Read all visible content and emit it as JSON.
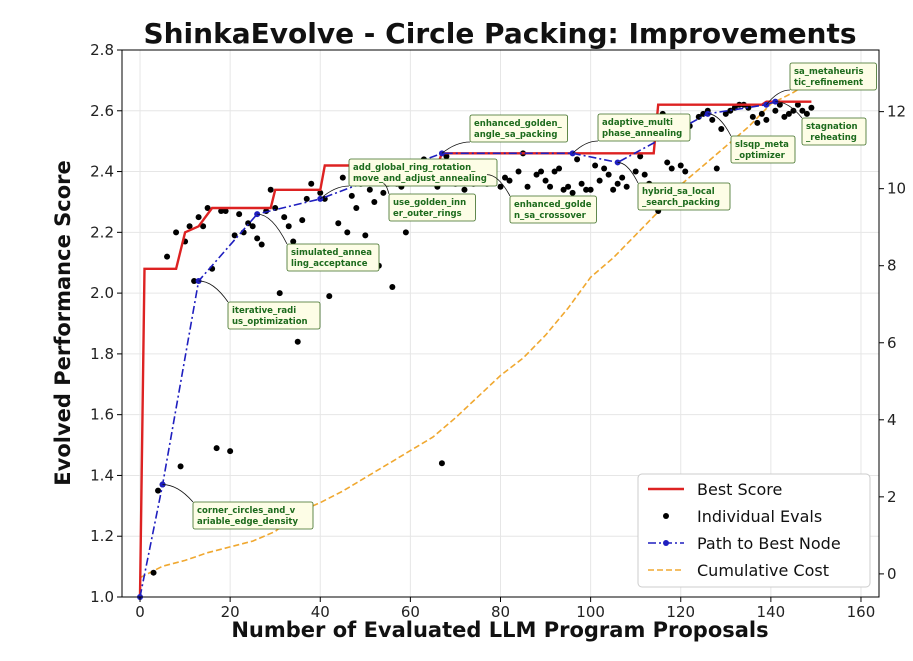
{
  "chart_data": {
    "type": "line",
    "title": "ShinkaEvolve - Circle Packing: Improvements",
    "xlabel": "Number of Evaluated LLM Program Proposals",
    "ylabel": "Evolved Performance Score",
    "xlim": [
      -4,
      164
    ],
    "ylim": [
      1.0,
      2.8
    ],
    "y2lim": [
      -0.6,
      13.6
    ],
    "xticks": [
      0,
      20,
      40,
      60,
      80,
      100,
      120,
      140,
      160
    ],
    "yticks": [
      1.0,
      1.2,
      1.4,
      1.6,
      1.8,
      2.0,
      2.2,
      2.4,
      2.6,
      2.8
    ],
    "y2ticks": [
      0,
      2,
      4,
      6,
      8,
      10,
      12
    ],
    "grid": true,
    "legend_position": "bottom-right",
    "colors": {
      "best": "#dd2222",
      "evals": "#000000",
      "path": "#1f1fbf",
      "cost": "#f0a830",
      "annotation_fill": "#fdfde6",
      "annotation_border": "#3a6b22",
      "annotation_text": "#1d6b1d"
    },
    "series": [
      {
        "name": "Best Score",
        "style": "step",
        "x": [
          0,
          1,
          8,
          10,
          13,
          16,
          29,
          30,
          40,
          41,
          66,
          67,
          114,
          115,
          138,
          139,
          149
        ],
        "y": [
          1.0,
          2.08,
          2.08,
          2.2,
          2.22,
          2.28,
          2.28,
          2.34,
          2.34,
          2.42,
          2.42,
          2.46,
          2.46,
          2.62,
          2.62,
          2.63,
          2.63
        ]
      },
      {
        "name": "Individual Evals",
        "style": "points",
        "x": [
          3,
          4,
          5,
          6,
          8,
          9,
          10,
          11,
          12,
          13,
          14,
          15,
          16,
          17,
          18,
          19,
          20,
          21,
          22,
          23,
          24,
          25,
          26,
          27,
          28,
          29,
          30,
          31,
          32,
          33,
          34,
          35,
          36,
          37,
          38,
          40,
          41,
          42,
          44,
          45,
          46,
          47,
          48,
          49,
          50,
          51,
          52,
          53,
          54,
          55,
          56,
          57,
          58,
          59,
          60,
          61,
          62,
          63,
          64,
          65,
          66,
          67,
          68,
          70,
          72,
          74,
          76,
          77,
          78,
          80,
          81,
          82,
          84,
          85,
          86,
          88,
          89,
          90,
          91,
          92,
          93,
          94,
          95,
          96,
          97,
          98,
          99,
          100,
          101,
          102,
          103,
          104,
          105,
          106,
          107,
          108,
          110,
          111,
          112,
          113,
          114,
          115,
          116,
          117,
          118,
          119,
          120,
          121,
          122,
          123,
          124,
          125,
          126,
          127,
          128,
          129,
          130,
          131,
          132,
          133,
          134,
          135,
          136,
          137,
          138,
          139,
          140,
          141,
          142,
          143,
          144,
          145,
          146,
          147,
          148,
          149
        ],
        "y": [
          1.08,
          1.35,
          1.37,
          2.12,
          2.2,
          1.43,
          2.17,
          2.22,
          2.04,
          2.25,
          2.22,
          2.28,
          2.08,
          1.49,
          2.27,
          2.27,
          1.48,
          2.19,
          2.26,
          2.2,
          2.23,
          2.22,
          2.18,
          2.16,
          2.27,
          2.34,
          2.28,
          2.0,
          2.25,
          2.22,
          2.17,
          1.84,
          2.24,
          2.31,
          2.36,
          2.33,
          2.31,
          1.99,
          2.23,
          2.38,
          2.2,
          2.32,
          2.28,
          2.36,
          2.19,
          2.34,
          2.3,
          2.09,
          2.33,
          2.36,
          2.02,
          2.36,
          2.35,
          2.2,
          2.38,
          2.4,
          2.42,
          2.44,
          2.31,
          2.38,
          2.35,
          1.44,
          2.45,
          2.36,
          2.34,
          2.36,
          2.38,
          2.36,
          2.4,
          2.35,
          2.38,
          2.37,
          2.4,
          2.46,
          2.35,
          2.39,
          2.4,
          2.37,
          2.35,
          2.4,
          2.41,
          2.34,
          2.35,
          2.33,
          2.44,
          2.36,
          2.34,
          2.34,
          2.42,
          2.37,
          2.41,
          2.39,
          2.34,
          2.36,
          2.38,
          2.35,
          2.4,
          2.45,
          2.39,
          2.36,
          2.33,
          2.27,
          2.59,
          2.43,
          2.41,
          2.35,
          2.42,
          2.4,
          2.55,
          2.35,
          2.58,
          2.59,
          2.6,
          2.57,
          2.41,
          2.54,
          2.59,
          2.6,
          2.61,
          2.62,
          2.62,
          2.61,
          2.58,
          2.56,
          2.59,
          2.57,
          2.44,
          2.6,
          2.62,
          2.58,
          2.59,
          2.6,
          2.62,
          2.6,
          2.59,
          2.61
        ]
      },
      {
        "name": "Path to Best Node",
        "style": "dashdot",
        "x": [
          0,
          5,
          13,
          26,
          40,
          67,
          96,
          106,
          126,
          139,
          141
        ],
        "y": [
          1.0,
          1.37,
          2.04,
          2.26,
          2.31,
          2.46,
          2.46,
          2.43,
          2.59,
          2.62,
          2.63
        ]
      },
      {
        "name": "Cumulative Cost",
        "style": "dashed",
        "axis": "right",
        "x": [
          0,
          5,
          10,
          15,
          20,
          25,
          30,
          35,
          40,
          45,
          50,
          55,
          60,
          65,
          70,
          75,
          80,
          85,
          90,
          95,
          100,
          105,
          110,
          115,
          120,
          125,
          130,
          135,
          140,
          145,
          149
        ],
        "y": [
          -0.1,
          0.2,
          0.35,
          0.55,
          0.7,
          0.85,
          1.1,
          1.6,
          1.85,
          2.15,
          2.5,
          2.85,
          3.2,
          3.55,
          4.05,
          4.6,
          5.15,
          5.6,
          6.2,
          6.9,
          7.7,
          8.2,
          8.8,
          9.4,
          10.1,
          10.6,
          11.1,
          11.6,
          12.2,
          12.5,
          12.8
        ]
      }
    ],
    "annotations": [
      {
        "text": [
          "corner_circles_and_v",
          "ariable_edge_density"
        ],
        "point_x": 5,
        "point_y": 1.37
      },
      {
        "text": [
          "iterative_radi",
          "us_optimization"
        ],
        "point_x": 13,
        "point_y": 2.04
      },
      {
        "text": [
          "simulated_annea",
          "ling_acceptance"
        ],
        "point_x": 26,
        "point_y": 2.26
      },
      {
        "text": [
          "add_global_ring_rotation_",
          "move_and_adjust_annealing"
        ],
        "point_x": 40,
        "point_y": 2.31
      },
      {
        "text": [
          "use_golden_inn",
          "er_outer_rings"
        ],
        "point_x": 54,
        "point_y": 2.36
      },
      {
        "text": [
          "enhanced_golden_",
          "angle_sa_packing"
        ],
        "point_x": 67,
        "point_y": 2.46
      },
      {
        "text": [
          "enhanced_golde",
          "n_sa_crossover"
        ],
        "point_x": 77,
        "point_y": 2.39
      },
      {
        "text": [
          "adaptive_multi",
          "phase_annealing"
        ],
        "point_x": 96,
        "point_y": 2.46
      },
      {
        "text": [
          "hybrid_sa_local",
          "_search_packing"
        ],
        "point_x": 106,
        "point_y": 2.43
      },
      {
        "text": [
          "slsqp_meta",
          "_optimizer"
        ],
        "point_x": 126,
        "point_y": 2.59
      },
      {
        "text": [
          "sa_metaheuris",
          "tic_refinement"
        ],
        "point_x": 139,
        "point_y": 2.62
      },
      {
        "text": [
          "stagnation",
          "_reheating"
        ],
        "point_x": 141,
        "point_y": 2.63
      }
    ]
  }
}
